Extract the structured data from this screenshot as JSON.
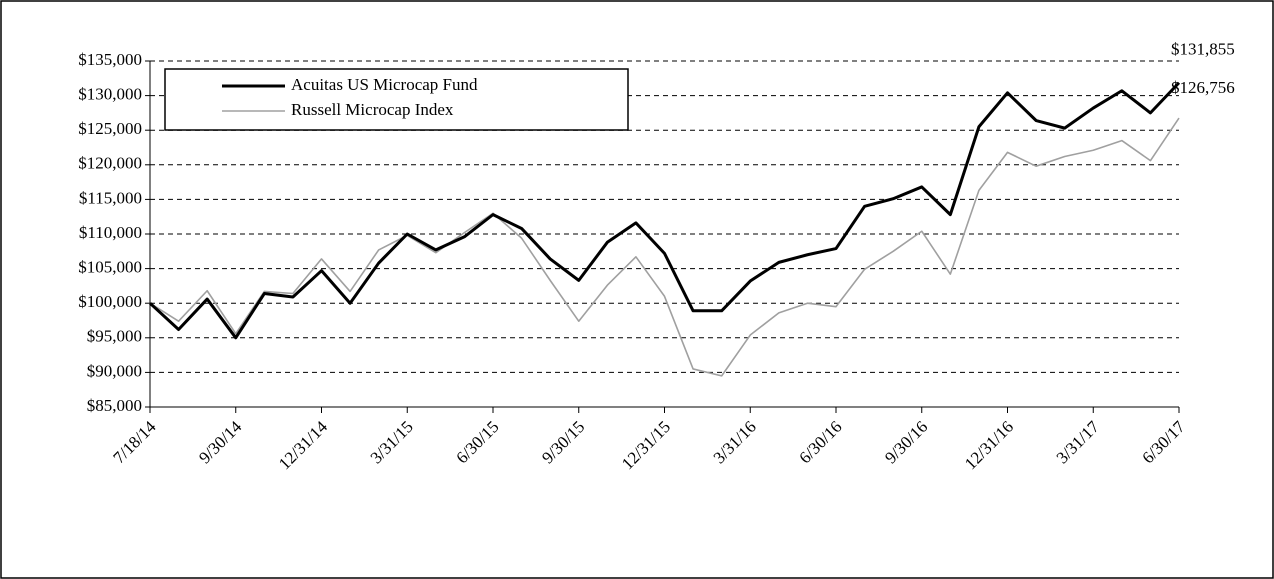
{
  "chart_data": {
    "type": "line",
    "categories": [
      "7/18/14",
      null,
      null,
      "9/30/14",
      null,
      null,
      "12/31/14",
      null,
      null,
      "3/31/15",
      null,
      null,
      "6/30/15",
      null,
      null,
      "9/30/15",
      null,
      null,
      "12/31/15",
      null,
      null,
      "3/31/16",
      null,
      null,
      "6/30/16",
      null,
      null,
      "9/30/16",
      null,
      null,
      "12/31/16",
      null,
      null,
      "3/31/17",
      null,
      null,
      "6/30/17"
    ],
    "series": [
      {
        "name": "Acuitas US Microcap Fund",
        "color": "#000000",
        "values": [
          100000,
          96200,
          100600,
          95000,
          101400,
          100900,
          104700,
          100000,
          105800,
          110000,
          107700,
          109600,
          112800,
          110800,
          106400,
          103300,
          108800,
          111600,
          107200,
          98900,
          98900,
          103200,
          105900,
          107000,
          107900,
          114000,
          115100,
          116800,
          112800,
          125500,
          130400,
          126400,
          125300,
          128200,
          130700,
          127500,
          131855
        ],
        "value_labels": [
          null,
          null,
          null,
          null,
          null,
          null,
          null,
          null,
          null,
          null,
          null,
          null,
          null,
          null,
          null,
          null,
          null,
          null,
          null,
          null,
          null,
          null,
          null,
          null,
          null,
          null,
          null,
          null,
          null,
          null,
          null,
          null,
          null,
          null,
          null,
          null,
          "$131,855"
        ]
      },
      {
        "name": "Russell Microcap Index",
        "color": "#a0a0a0",
        "values": [
          100000,
          97400,
          101800,
          95600,
          101700,
          101400,
          106400,
          101700,
          107700,
          109800,
          107300,
          110200,
          113000,
          109400,
          103300,
          97400,
          102600,
          106700,
          101000,
          90500,
          89500,
          95400,
          98600,
          100000,
          99500,
          104900,
          107500,
          110400,
          104200,
          116300,
          121800,
          119800,
          121200,
          122100,
          123500,
          120600,
          126756
        ],
        "value_labels": [
          null,
          null,
          null,
          null,
          null,
          null,
          null,
          null,
          null,
          null,
          null,
          null,
          null,
          null,
          null,
          null,
          null,
          null,
          null,
          null,
          null,
          null,
          null,
          null,
          null,
          null,
          null,
          null,
          null,
          null,
          null,
          null,
          null,
          null,
          null,
          null,
          "$126,756"
        ]
      }
    ],
    "ylim": [
      85000,
      135000
    ],
    "yticks": [
      {
        "value": 85000,
        "label": "$85,000"
      },
      {
        "value": 90000,
        "label": "$90,000"
      },
      {
        "value": 95000,
        "label": "$95,000"
      },
      {
        "value": 100000,
        "label": "$100,000"
      },
      {
        "value": 105000,
        "label": "$105,000"
      },
      {
        "value": 110000,
        "label": "$110,000"
      },
      {
        "value": 115000,
        "label": "$115,000"
      },
      {
        "value": 120000,
        "label": "$120,000"
      },
      {
        "value": 125000,
        "label": "$125,000"
      },
      {
        "value": 130000,
        "label": "$130,000"
      },
      {
        "value": 135000,
        "label": "$135,000"
      }
    ],
    "grid": true,
    "legend": "upper left"
  }
}
